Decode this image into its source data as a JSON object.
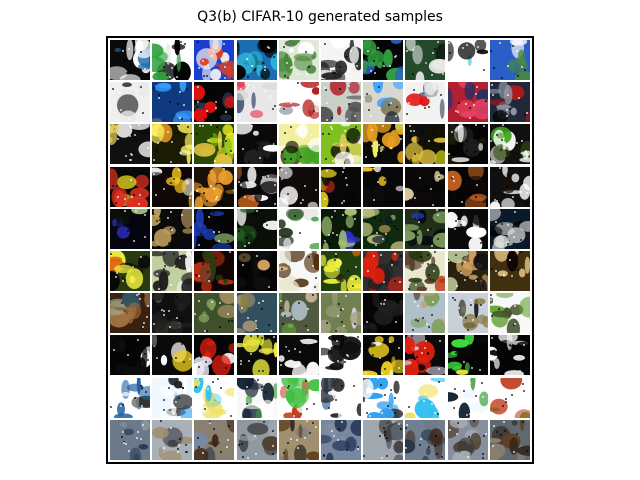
{
  "title": "Q3(b) CIFAR-10 generated samples",
  "grid": {
    "rows": 10,
    "cols": 10,
    "row_themes": [
      "mixed-color",
      "vehicles-vivid",
      "dark-blotchy-yellow",
      "dark-red-yellow-noise",
      "dark-green-blue",
      "animals-warm",
      "animals-muted",
      "high-contrast-noise",
      "white-cyan-noise",
      "vehicles-gray"
    ]
  },
  "colors": {
    "background": "#ffffff",
    "frame": "#000000",
    "cell_gap": "#ffffff"
  }
}
